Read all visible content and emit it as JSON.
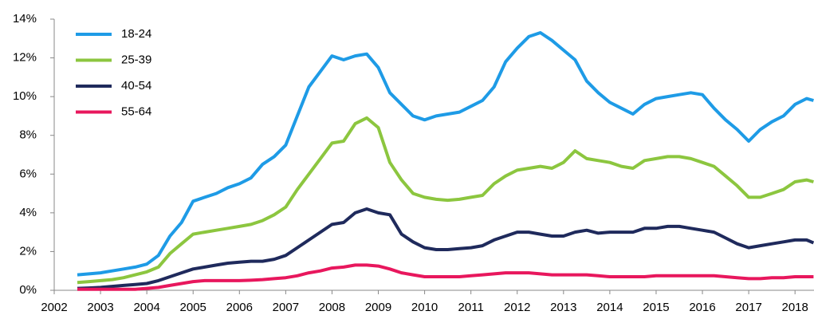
{
  "chart_data": {
    "type": "line",
    "legend": "upper left",
    "grid": false,
    "xlim": [
      2002,
      2018.41
    ],
    "xticks": [
      2002,
      2003,
      2004,
      2005,
      2006,
      2007,
      2008,
      2009,
      2010,
      2011,
      2012,
      2013,
      2014,
      2015,
      2016,
      2017,
      2018
    ],
    "ylim": [
      0,
      14
    ],
    "yticks": [
      {
        "value": 0,
        "label": "0%"
      },
      {
        "value": 2,
        "label": "2%"
      },
      {
        "value": 4,
        "label": "4%"
      },
      {
        "value": 6,
        "label": "6%"
      },
      {
        "value": 8,
        "label": "8%"
      },
      {
        "value": 10,
        "label": "10%"
      },
      {
        "value": 12,
        "label": "12%"
      },
      {
        "value": 14,
        "label": "14%"
      }
    ],
    "x": [
      2002.5,
      2002.75,
      2003,
      2003.25,
      2003.5,
      2003.75,
      2004,
      2004.25,
      2004.5,
      2004.75,
      2005,
      2005.25,
      2005.5,
      2005.75,
      2006,
      2006.25,
      2006.5,
      2006.75,
      2007,
      2007.25,
      2007.5,
      2007.75,
      2008,
      2008.25,
      2008.5,
      2008.75,
      2009,
      2009.25,
      2009.5,
      2009.75,
      2010,
      2010.25,
      2010.5,
      2010.75,
      2011,
      2011.25,
      2011.5,
      2011.75,
      2012,
      2012.25,
      2012.5,
      2012.75,
      2013,
      2013.25,
      2013.5,
      2013.75,
      2014,
      2014.25,
      2014.5,
      2014.75,
      2015,
      2015.25,
      2015.5,
      2015.75,
      2016,
      2016.25,
      2016.5,
      2016.75,
      2017,
      2017.25,
      2017.5,
      2017.75,
      2018,
      2018.25,
      2018.4
    ],
    "series": [
      {
        "name": "18-24",
        "color": "#1e9be6",
        "values": [
          0.8,
          0.85,
          0.9,
          1.0,
          1.1,
          1.2,
          1.35,
          1.8,
          2.8,
          3.5,
          4.6,
          4.8,
          5.0,
          5.3,
          5.5,
          5.8,
          6.5,
          6.9,
          7.5,
          9.0,
          10.5,
          11.3,
          12.1,
          11.9,
          12.1,
          12.2,
          11.5,
          10.2,
          9.6,
          9.0,
          8.8,
          9.0,
          9.1,
          9.2,
          9.5,
          9.8,
          10.5,
          11.8,
          12.5,
          13.1,
          13.3,
          12.9,
          12.4,
          11.9,
          10.8,
          10.2,
          9.7,
          9.4,
          9.1,
          9.6,
          9.9,
          10.0,
          10.1,
          10.2,
          10.1,
          9.4,
          8.8,
          8.3,
          7.7,
          8.3,
          8.7,
          9.0,
          9.6,
          9.9,
          9.8
        ]
      },
      {
        "name": "25-39",
        "color": "#8cc63f",
        "values": [
          0.4,
          0.45,
          0.5,
          0.55,
          0.65,
          0.8,
          0.95,
          1.2,
          1.9,
          2.4,
          2.9,
          3.0,
          3.1,
          3.2,
          3.3,
          3.4,
          3.6,
          3.9,
          4.3,
          5.2,
          6.0,
          6.8,
          7.6,
          7.7,
          8.6,
          8.9,
          8.4,
          6.6,
          5.7,
          5.0,
          4.8,
          4.7,
          4.65,
          4.7,
          4.8,
          4.9,
          5.5,
          5.9,
          6.2,
          6.3,
          6.4,
          6.3,
          6.6,
          7.2,
          6.8,
          6.7,
          6.6,
          6.4,
          6.3,
          6.7,
          6.8,
          6.9,
          6.9,
          6.8,
          6.6,
          6.4,
          5.9,
          5.4,
          4.8,
          4.8,
          5.0,
          5.2,
          5.6,
          5.7,
          5.6
        ]
      },
      {
        "name": "40-54",
        "color": "#1f2a5c",
        "values": [
          0.1,
          0.12,
          0.15,
          0.2,
          0.25,
          0.3,
          0.35,
          0.5,
          0.7,
          0.9,
          1.1,
          1.2,
          1.3,
          1.4,
          1.45,
          1.5,
          1.5,
          1.6,
          1.8,
          2.2,
          2.6,
          3.0,
          3.4,
          3.5,
          4.0,
          4.2,
          4.0,
          3.9,
          2.9,
          2.5,
          2.2,
          2.1,
          2.1,
          2.15,
          2.2,
          2.3,
          2.6,
          2.8,
          3.0,
          3.0,
          2.9,
          2.8,
          2.8,
          3.0,
          3.1,
          2.95,
          3.0,
          3.0,
          3.0,
          3.2,
          3.2,
          3.3,
          3.3,
          3.2,
          3.1,
          3.0,
          2.7,
          2.4,
          2.2,
          2.3,
          2.4,
          2.5,
          2.6,
          2.6,
          2.45
        ]
      },
      {
        "name": "55-64",
        "color": "#e8175d",
        "values": [
          0.05,
          0.05,
          0.05,
          0.05,
          0.05,
          0.05,
          0.1,
          0.15,
          0.25,
          0.35,
          0.45,
          0.5,
          0.5,
          0.5,
          0.5,
          0.52,
          0.55,
          0.6,
          0.65,
          0.75,
          0.9,
          1.0,
          1.15,
          1.2,
          1.3,
          1.3,
          1.25,
          1.1,
          0.9,
          0.8,
          0.7,
          0.7,
          0.7,
          0.7,
          0.75,
          0.8,
          0.85,
          0.9,
          0.9,
          0.9,
          0.85,
          0.8,
          0.8,
          0.8,
          0.8,
          0.75,
          0.7,
          0.7,
          0.7,
          0.7,
          0.75,
          0.75,
          0.75,
          0.75,
          0.75,
          0.75,
          0.7,
          0.65,
          0.6,
          0.6,
          0.65,
          0.65,
          0.7,
          0.7,
          0.7
        ]
      }
    ]
  }
}
